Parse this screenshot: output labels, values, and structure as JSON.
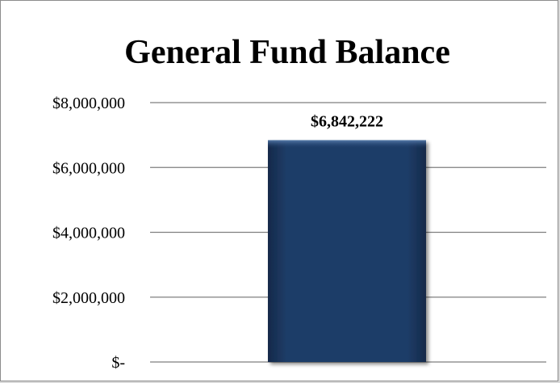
{
  "chart_data": {
    "type": "bar",
    "title": "General Fund Balance",
    "categories": [
      ""
    ],
    "values": [
      6842222
    ],
    "data_labels": [
      "$6,842,222"
    ],
    "xlabel": "",
    "ylabel": "",
    "ylim": [
      0,
      8000000
    ],
    "y_ticks": [
      {
        "value": 8000000,
        "label": "$8,000,000"
      },
      {
        "value": 6000000,
        "label": "$6,000,000"
      },
      {
        "value": 4000000,
        "label": "$4,000,000"
      },
      {
        "value": 2000000,
        "label": "$2,000,000"
      },
      {
        "value": 0,
        "label": "$-"
      }
    ],
    "grid": true,
    "legend": "none",
    "colors": {
      "bar": "#1f3d68",
      "bar_highlight": "#3a5f92",
      "bar_shadow": "#0f2240",
      "gridline": "#7f7f7f"
    }
  }
}
